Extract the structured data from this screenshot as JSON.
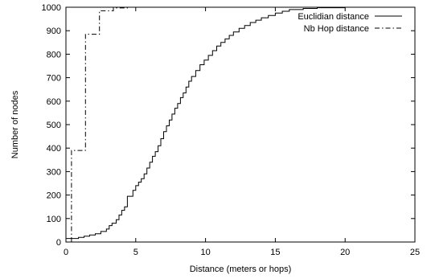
{
  "chart_data": {
    "type": "line",
    "title": "",
    "xlabel": "Distance (meters or hops)",
    "ylabel": "Number of nodes",
    "xlim": [
      0,
      25
    ],
    "ylim": [
      0,
      1000
    ],
    "xticks": [
      0,
      5,
      10,
      15,
      20,
      25
    ],
    "yticks": [
      0,
      100,
      200,
      300,
      400,
      500,
      600,
      700,
      800,
      900,
      1000
    ],
    "grid": false,
    "legend_position": "top-right",
    "series": [
      {
        "name": "Euclidian distance",
        "style": "solid",
        "color": "#000000",
        "points": [
          [
            0,
            15
          ],
          [
            0.9,
            15
          ],
          [
            0.9,
            20
          ],
          [
            1.3,
            20
          ],
          [
            1.3,
            25
          ],
          [
            1.7,
            25
          ],
          [
            1.7,
            30
          ],
          [
            2.1,
            30
          ],
          [
            2.1,
            35
          ],
          [
            2.5,
            35
          ],
          [
            2.5,
            45
          ],
          [
            2.9,
            45
          ],
          [
            2.9,
            55
          ],
          [
            3.1,
            55
          ],
          [
            3.1,
            70
          ],
          [
            3.3,
            70
          ],
          [
            3.3,
            80
          ],
          [
            3.6,
            80
          ],
          [
            3.6,
            95
          ],
          [
            3.8,
            95
          ],
          [
            3.8,
            115
          ],
          [
            4.0,
            115
          ],
          [
            4.0,
            135
          ],
          [
            4.2,
            135
          ],
          [
            4.2,
            150
          ],
          [
            4.4,
            150
          ],
          [
            4.4,
            195
          ],
          [
            4.8,
            195
          ],
          [
            4.8,
            220
          ],
          [
            5.0,
            220
          ],
          [
            5.0,
            240
          ],
          [
            5.2,
            240
          ],
          [
            5.2,
            255
          ],
          [
            5.4,
            255
          ],
          [
            5.4,
            270
          ],
          [
            5.6,
            270
          ],
          [
            5.6,
            290
          ],
          [
            5.8,
            290
          ],
          [
            5.8,
            315
          ],
          [
            6.0,
            315
          ],
          [
            6.0,
            340
          ],
          [
            6.2,
            340
          ],
          [
            6.2,
            365
          ],
          [
            6.4,
            365
          ],
          [
            6.4,
            385
          ],
          [
            6.6,
            385
          ],
          [
            6.6,
            410
          ],
          [
            6.8,
            410
          ],
          [
            6.8,
            440
          ],
          [
            7.0,
            440
          ],
          [
            7.0,
            470
          ],
          [
            7.2,
            470
          ],
          [
            7.2,
            495
          ],
          [
            7.4,
            495
          ],
          [
            7.4,
            520
          ],
          [
            7.6,
            520
          ],
          [
            7.6,
            545
          ],
          [
            7.8,
            545
          ],
          [
            7.8,
            570
          ],
          [
            8.0,
            570
          ],
          [
            8.0,
            590
          ],
          [
            8.2,
            590
          ],
          [
            8.2,
            615
          ],
          [
            8.4,
            615
          ],
          [
            8.4,
            635
          ],
          [
            8.6,
            635
          ],
          [
            8.6,
            660
          ],
          [
            8.8,
            660
          ],
          [
            8.8,
            685
          ],
          [
            9.0,
            685
          ],
          [
            9.0,
            705
          ],
          [
            9.3,
            705
          ],
          [
            9.3,
            730
          ],
          [
            9.6,
            730
          ],
          [
            9.6,
            755
          ],
          [
            9.9,
            755
          ],
          [
            9.9,
            775
          ],
          [
            10.2,
            775
          ],
          [
            10.2,
            795
          ],
          [
            10.5,
            795
          ],
          [
            10.5,
            815
          ],
          [
            10.8,
            815
          ],
          [
            10.8,
            835
          ],
          [
            11.1,
            835
          ],
          [
            11.1,
            850
          ],
          [
            11.4,
            850
          ],
          [
            11.4,
            865
          ],
          [
            11.7,
            865
          ],
          [
            11.7,
            880
          ],
          [
            12.0,
            880
          ],
          [
            12.0,
            895
          ],
          [
            12.4,
            895
          ],
          [
            12.4,
            910
          ],
          [
            12.8,
            910
          ],
          [
            12.8,
            922
          ],
          [
            13.2,
            922
          ],
          [
            13.2,
            935
          ],
          [
            13.6,
            935
          ],
          [
            13.6,
            945
          ],
          [
            14.0,
            945
          ],
          [
            14.0,
            955
          ],
          [
            14.5,
            955
          ],
          [
            14.5,
            965
          ],
          [
            15.0,
            965
          ],
          [
            15.0,
            975
          ],
          [
            15.5,
            975
          ],
          [
            15.5,
            983
          ],
          [
            16.0,
            983
          ],
          [
            16.0,
            990
          ],
          [
            17.0,
            990
          ],
          [
            17.0,
            995
          ],
          [
            18.0,
            995
          ],
          [
            18.0,
            998
          ],
          [
            20.0,
            998
          ],
          [
            20.0,
            1000
          ],
          [
            22.0,
            1000
          ]
        ]
      },
      {
        "name": "Nb Hop distance",
        "style": "dashdot",
        "color": "#000000",
        "points": [
          [
            0.4,
            0
          ],
          [
            0.4,
            390
          ],
          [
            1.4,
            390
          ],
          [
            1.4,
            885
          ],
          [
            2.4,
            885
          ],
          [
            2.4,
            985
          ],
          [
            3.4,
            985
          ],
          [
            3.4,
            997
          ],
          [
            4.4,
            997
          ],
          [
            4.4,
            1000
          ],
          [
            5.0,
            1000
          ]
        ]
      }
    ]
  }
}
